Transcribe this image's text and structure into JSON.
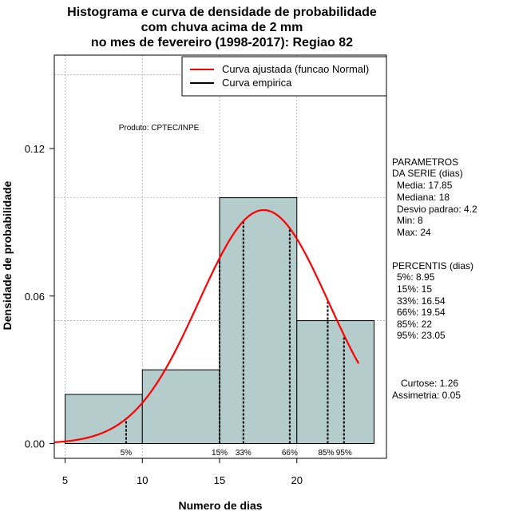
{
  "title_lines": [
    "Histograma e curva de densidade de probabilidade",
    "com chuva acima de 2 mm",
    "no mes de fevereiro (1998-2017): Regiao 82"
  ],
  "product_note": "Produto: CPTEC/INPE",
  "side_panel": {
    "params_header": [
      "PARAMETROS",
      "DA SERIE (dias)"
    ],
    "params": [
      "Media: 17.85",
      "Mediana: 18",
      "Desvio padrao: 4.2",
      "Min: 8",
      "Max: 24"
    ],
    "percentis_header": "PERCENTIS (dias)",
    "percentis": [
      "5%: 8.95",
      "15%: 15",
      "33%: 16.54",
      "66%: 19.54",
      "85%: 22",
      "95%: 23.05"
    ],
    "shape": [
      "Curtose: 1.26",
      "Assimetria: 0.05"
    ]
  },
  "chart_data": {
    "type": "bar",
    "title": "Histograma e curva de densidade de probabilidade com chuva acima de 2 mm no mes de fevereiro (1998-2017): Regiao 82",
    "xlabel": "Numero de dias",
    "ylabel": "Densidade de probabilidade",
    "xlim": [
      4.3,
      25.8
    ],
    "ylim": [
      -0.006,
      0.158
    ],
    "x_ticks": [
      5,
      10,
      15,
      20
    ],
    "y_ticks": [
      0.0,
      0.06,
      0.12
    ],
    "y_tick_labels": [
      "0.00",
      "0.06",
      "0.12"
    ],
    "grid_y": [
      0.05,
      0.1,
      0.15
    ],
    "grid_x": [
      5,
      10,
      15,
      20
    ],
    "bins": [
      {
        "from": 5,
        "to": 10,
        "density": 0.02
      },
      {
        "from": 10,
        "to": 15,
        "density": 0.03
      },
      {
        "from": 15,
        "to": 20,
        "density": 0.1
      },
      {
        "from": 20,
        "to": 25,
        "density": 0.05
      }
    ],
    "normal_curve": {
      "mean": 17.85,
      "sd": 4.2,
      "from": 4.3,
      "to": 24.0,
      "color": "#ff0000"
    },
    "percentile_lines": [
      {
        "label": "5%",
        "x": 8.95
      },
      {
        "label": "15%",
        "x": 15
      },
      {
        "label": "33%",
        "x": 16.54
      },
      {
        "label": "66%",
        "x": 19.54
      },
      {
        "label": "85%",
        "x": 22
      },
      {
        "label": "95%",
        "x": 23.05
      }
    ],
    "legend": {
      "placement": "top-right",
      "entries": [
        {
          "label": "Curva ajustada (funcao Normal)",
          "color": "#ff0000"
        },
        {
          "label": "Curva empirica",
          "color": "#000000"
        }
      ]
    },
    "bar_fill": "#b4cccc",
    "grid_color": "#bbbbbb"
  }
}
